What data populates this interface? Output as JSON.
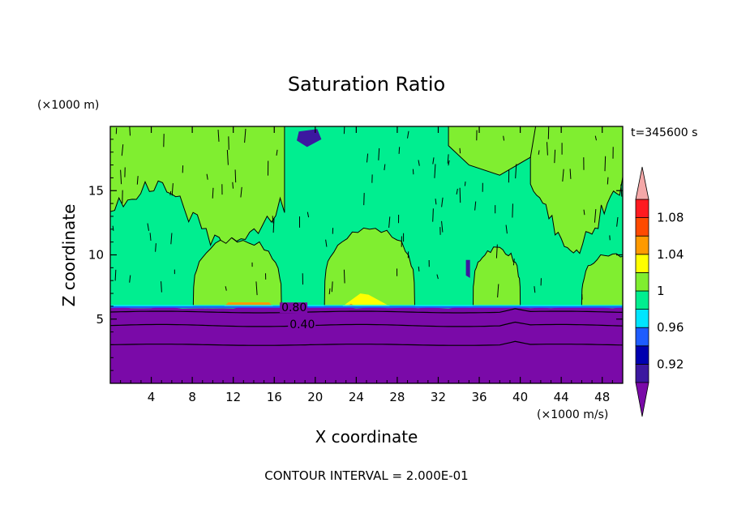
{
  "chart_data": {
    "type": "heatmap",
    "title": "Saturation Ratio",
    "xlabel": "X coordinate",
    "ylabel": "Z coordinate",
    "x_unit": "(×1000 m/s)",
    "y_unit": "(×1000 m)",
    "time_label": "t=345600 s",
    "footer": "CONTOUR INTERVAL = 2.000E-01",
    "xlim": [
      0,
      50
    ],
    "ylim": [
      0,
      20
    ],
    "xticks": [
      "4",
      "8",
      "12",
      "16",
      "20",
      "24",
      "28",
      "32",
      "36",
      "40",
      "44",
      "48"
    ],
    "yticks": [
      "5",
      "10",
      "15"
    ],
    "contour_labels": [
      {
        "text": "0.80",
        "x": 16.7,
        "y": 5.6
      },
      {
        "text": "0.40",
        "x": 17.5,
        "y": 4.3
      }
    ],
    "levels": [
      0.92,
      0.96,
      1,
      1.04,
      1.08
    ],
    "colorbar_colors": {
      "lt_0.90": "#7a0aa8",
      "0.90_0.92": "#3c18a0",
      "0.92_0.94": "#0000b0",
      "0.94_0.96": "#1e5cff",
      "0.96_0.98": "#00e5ff",
      "0.98_1.00": "#00ee90",
      "1.00_1.02": "#80ee30",
      "1.02_1.04": "#ffff00",
      "1.04_1.06": "#ff9a00",
      "1.06_1.08": "#ff4a00",
      "1.08_1.10": "#ff1a20",
      "gt_1.10": "#f4a8a8"
    },
    "regions": [
      {
        "value": "<0.90 (subsaturated lower layer)",
        "z_range": [
          0,
          5.9
        ],
        "x_range": [
          0,
          50
        ]
      },
      {
        "value": "0.98-1.00",
        "description": "background above ~6 km"
      },
      {
        "value": "1.00-1.02",
        "description": "moist cells x≈8-16, 21-29, 35-39 (z≈6-11) and upper layer z≈12-20"
      },
      {
        "value": "1.02-1.04",
        "x_range": [
          23,
          27
        ],
        "z_range": [
          5.9,
          6.8
        ]
      },
      {
        "value": "1.04-1.06",
        "x_range": [
          11,
          16
        ],
        "z_range": [
          5.9,
          6.3
        ]
      }
    ]
  }
}
